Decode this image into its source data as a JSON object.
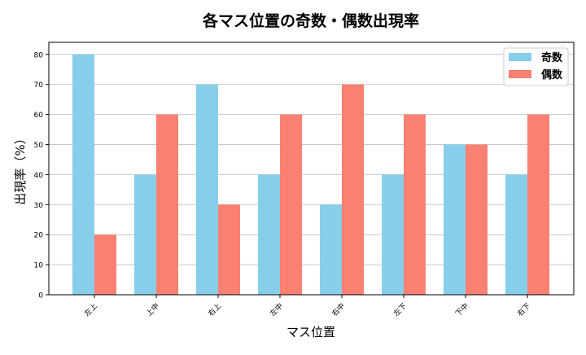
{
  "chart_data": {
    "type": "bar",
    "title": "各マス位置の奇数・偶数出現率",
    "xlabel": "マス位置",
    "ylabel": "出現率（%）",
    "categories": [
      "左上",
      "上中",
      "右上",
      "左中",
      "右中",
      "左下",
      "下中",
      "右下"
    ],
    "series": [
      {
        "name": "奇数",
        "color": "#87CEEB",
        "values": [
          80,
          40,
          70,
          40,
          30,
          40,
          50,
          40
        ]
      },
      {
        "name": "偶数",
        "color": "#FA8072",
        "values": [
          20,
          60,
          30,
          60,
          70,
          60,
          50,
          60
        ]
      }
    ],
    "ylim": [
      0,
      84
    ],
    "yticks": [
      0,
      10,
      20,
      30,
      40,
      50,
      60,
      70,
      80
    ],
    "grid": "y",
    "legend": "top-right"
  }
}
